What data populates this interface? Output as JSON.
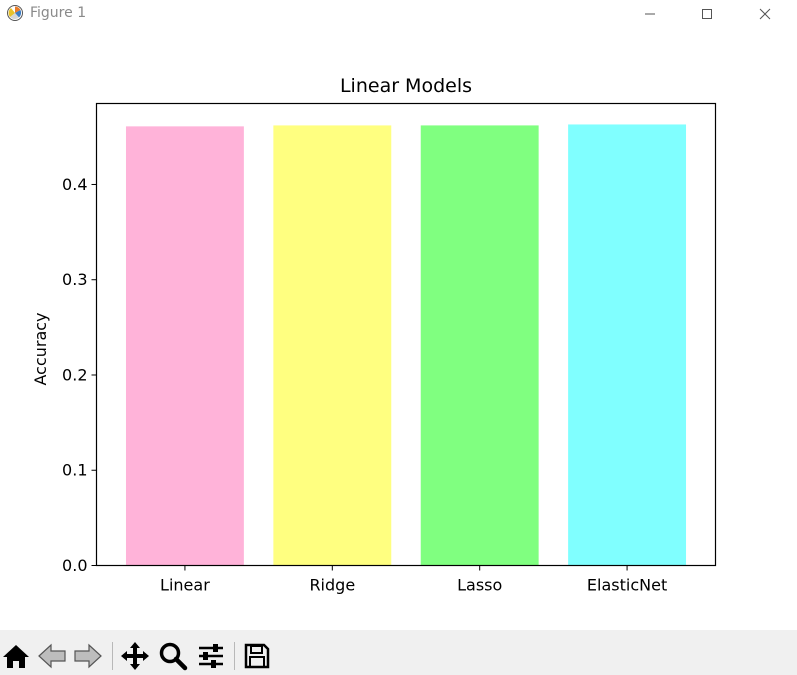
{
  "window": {
    "title": "Figure 1",
    "controls": {
      "minimize": "—",
      "maximize": "☐",
      "close": "✕"
    }
  },
  "toolbar": {
    "buttons": [
      {
        "name": "home-icon",
        "label": "Home"
      },
      {
        "name": "back-icon",
        "label": "Back"
      },
      {
        "name": "forward-icon",
        "label": "Forward"
      },
      {
        "name": "pan-icon",
        "label": "Pan"
      },
      {
        "name": "zoom-icon",
        "label": "Zoom"
      },
      {
        "name": "configure-subplots-icon",
        "label": "Subplots"
      },
      {
        "name": "save-icon",
        "label": "Save"
      }
    ]
  },
  "chart_data": {
    "type": "bar",
    "title": "Linear Models",
    "xlabel": "",
    "ylabel": "Accuracy",
    "categories": [
      "Linear",
      "Ridge",
      "Lasso",
      "ElasticNet"
    ],
    "values": [
      0.461,
      0.462,
      0.462,
      0.463
    ],
    "colors": [
      "#ffb3d9",
      "#ffff80",
      "#80ff80",
      "#80ffff"
    ],
    "ylim": [
      0,
      0.485
    ],
    "yticks": [
      0.0,
      0.1,
      0.2,
      0.3,
      0.4
    ],
    "ytick_labels": [
      "0.0",
      "0.1",
      "0.2",
      "0.3",
      "0.4"
    ],
    "grid": false,
    "legend": "none"
  }
}
